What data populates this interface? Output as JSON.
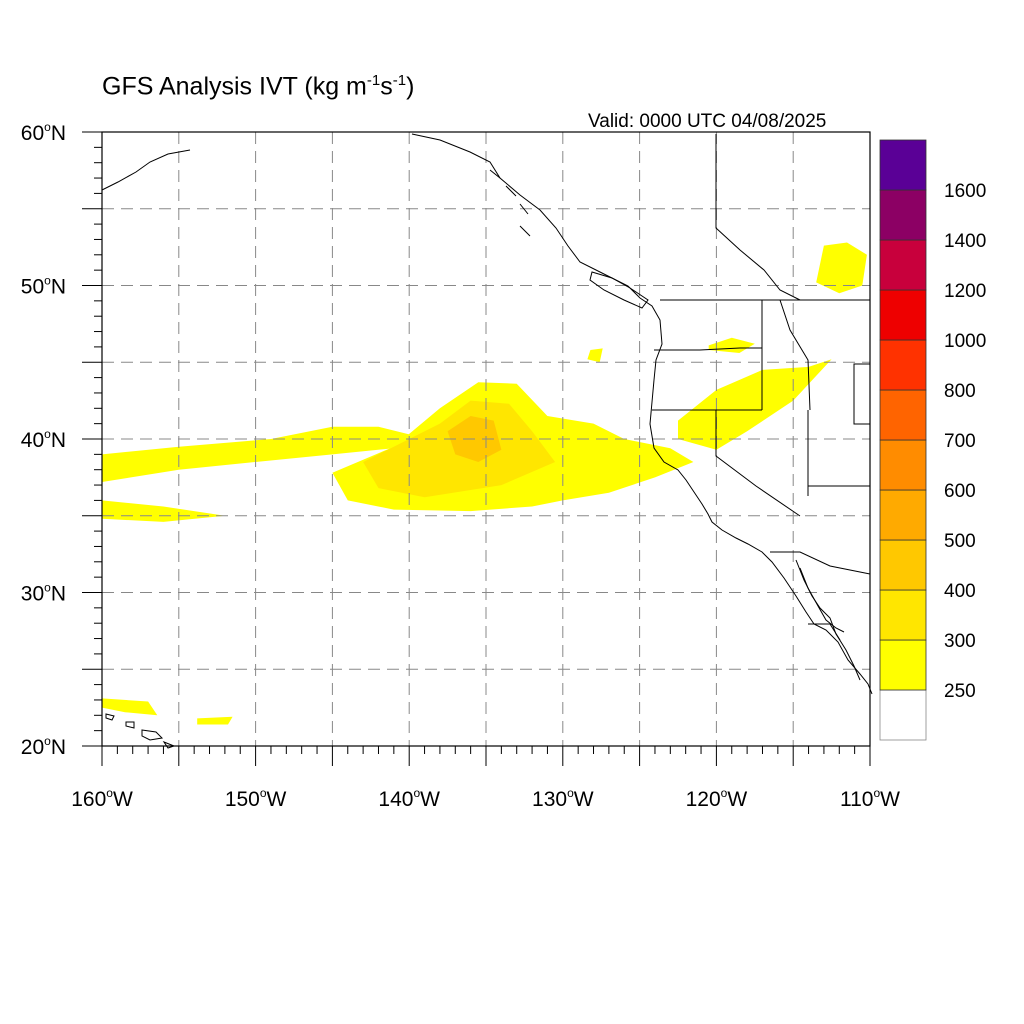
{
  "title": {
    "main": "GFS Analysis IVT (kg m",
    "exp1": "-1",
    "mid": "s",
    "exp2": "-1",
    "end": ")"
  },
  "valid": "Valid: 0000 UTC 04/08/2025",
  "map": {
    "lon_range": [
      -160,
      -110
    ],
    "lat_range": [
      20,
      60
    ],
    "grid_lines": "dashed every 5 degrees",
    "lat_labels": [
      {
        "lat": 60,
        "deg": "60",
        "hem": "N"
      },
      {
        "lat": 50,
        "deg": "50",
        "hem": "N"
      },
      {
        "lat": 40,
        "deg": "40",
        "hem": "N"
      },
      {
        "lat": 30,
        "deg": "30",
        "hem": "N"
      },
      {
        "lat": 20,
        "deg": "20",
        "hem": "N"
      }
    ],
    "lon_labels": [
      {
        "lon": -160,
        "deg": "160",
        "hem": "W"
      },
      {
        "lon": -150,
        "deg": "150",
        "hem": "W"
      },
      {
        "lon": -140,
        "deg": "140",
        "hem": "W"
      },
      {
        "lon": -130,
        "deg": "130",
        "hem": "W"
      },
      {
        "lon": -120,
        "deg": "120",
        "hem": "W"
      },
      {
        "lon": -110,
        "deg": "110",
        "hem": "W"
      }
    ]
  },
  "colorbar": {
    "colors": [
      "#ffffff",
      "#ffff00",
      "#ffe600",
      "#ffc800",
      "#ffaa00",
      "#ff8c00",
      "#ff6400",
      "#ff3200",
      "#ee0000",
      "#c8003c",
      "#8c0064",
      "#5a0096"
    ],
    "labels": [
      "250",
      "300",
      "400",
      "500",
      "600",
      "700",
      "800",
      "1000",
      "1200",
      "1400",
      "1600"
    ]
  },
  "ivt_regions": [
    {
      "level": 1,
      "points": [
        [
          -160,
          39
        ],
        [
          -155,
          39.5
        ],
        [
          -149,
          40
        ],
        [
          -145,
          40.8
        ],
        [
          -142,
          40.8
        ],
        [
          -140,
          40.3
        ],
        [
          -140,
          39.5
        ],
        [
          -145,
          39
        ],
        [
          -150,
          38.5
        ],
        [
          -155,
          38
        ],
        [
          -160,
          37.2
        ]
      ]
    },
    {
      "level": 1,
      "points": [
        [
          -160,
          36
        ],
        [
          -156,
          35.6
        ],
        [
          -152,
          35
        ],
        [
          -156,
          34.6
        ],
        [
          -160,
          34.8
        ]
      ]
    },
    {
      "level": 1,
      "points": [
        [
          -145,
          37.8
        ],
        [
          -141,
          39.5
        ],
        [
          -138,
          42
        ],
        [
          -135.5,
          43.7
        ],
        [
          -133,
          43.6
        ],
        [
          -131,
          41.5
        ],
        [
          -128,
          41
        ],
        [
          -126,
          40
        ],
        [
          -123,
          39.4
        ],
        [
          -121.5,
          38.5
        ],
        [
          -124,
          37.5
        ],
        [
          -127,
          36.5
        ],
        [
          -130,
          36
        ],
        [
          -132,
          35.6
        ],
        [
          -136,
          35.3
        ],
        [
          -141,
          35.4
        ],
        [
          -144,
          36
        ]
      ]
    },
    {
      "level": 2,
      "points": [
        [
          -143,
          38.5
        ],
        [
          -140,
          40
        ],
        [
          -138,
          41
        ],
        [
          -136,
          42.5
        ],
        [
          -133.5,
          42.3
        ],
        [
          -132,
          40.5
        ],
        [
          -130.5,
          38.5
        ],
        [
          -134,
          37
        ],
        [
          -139,
          36.2
        ],
        [
          -142,
          36.8
        ]
      ]
    },
    {
      "level": 3,
      "points": [
        [
          -137.5,
          40.5
        ],
        [
          -136,
          41.5
        ],
        [
          -134.5,
          41.2
        ],
        [
          -134,
          39.3
        ],
        [
          -135.5,
          38.5
        ],
        [
          -137,
          39
        ]
      ]
    },
    {
      "level": 1,
      "points": [
        [
          -122.5,
          41.2
        ],
        [
          -120,
          43.2
        ],
        [
          -117,
          44.5
        ],
        [
          -114,
          44.7
        ],
        [
          -112.5,
          45.2
        ],
        [
          -115,
          42.5
        ],
        [
          -118,
          40.5
        ],
        [
          -120,
          39.3
        ],
        [
          -122.5,
          40
        ]
      ]
    },
    {
      "level": 1,
      "points": [
        [
          -113,
          52.6
        ],
        [
          -111.5,
          52.8
        ],
        [
          -110.2,
          52
        ],
        [
          -110.5,
          50
        ],
        [
          -112,
          49.5
        ],
        [
          -113.5,
          50.2
        ]
      ]
    },
    {
      "level": 1,
      "points": [
        [
          -120.5,
          46.1
        ],
        [
          -119,
          46.6
        ],
        [
          -117.5,
          46.2
        ],
        [
          -118.5,
          45.6
        ],
        [
          -120.5,
          45.8
        ]
      ]
    },
    {
      "level": 1,
      "points": [
        [
          -128.2,
          45.8
        ],
        [
          -127.4,
          45.9
        ],
        [
          -127.6,
          45
        ],
        [
          -128.4,
          45.2
        ]
      ]
    },
    {
      "level": 1,
      "points": [
        [
          -160,
          23.1
        ],
        [
          -157,
          22.9
        ],
        [
          -156.4,
          22
        ],
        [
          -158.5,
          22.2
        ],
        [
          -160,
          22.5
        ]
      ]
    },
    {
      "level": 1,
      "points": [
        [
          -153.8,
          21.8
        ],
        [
          -151.5,
          21.9
        ],
        [
          -151.8,
          21.4
        ],
        [
          -153.8,
          21.4
        ]
      ]
    }
  ]
}
